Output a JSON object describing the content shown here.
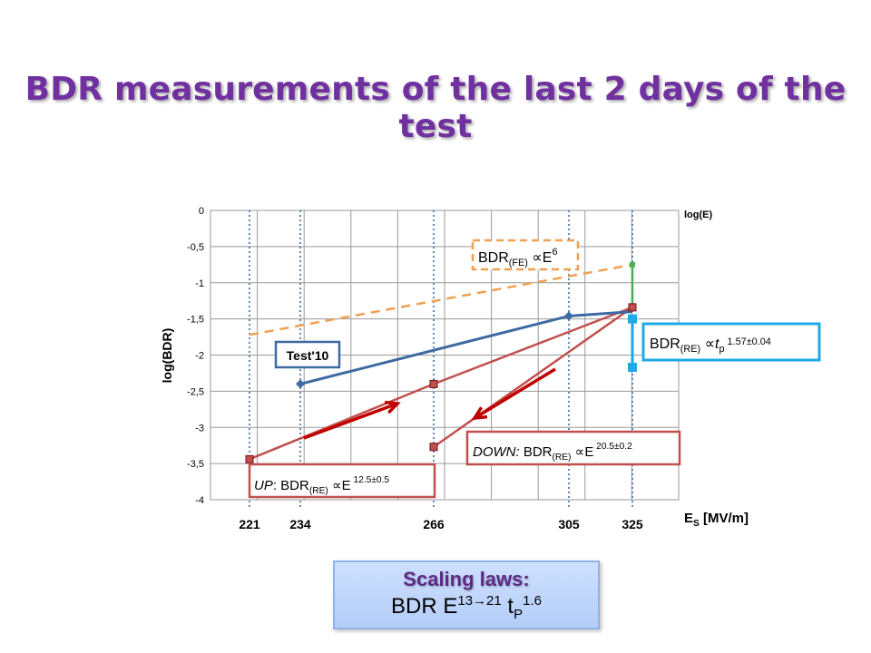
{
  "slide": {
    "title": "BDR measurements of the last 2 days of the test"
  },
  "colors": {
    "title": "#7030a0",
    "test10": "#3d6aa3",
    "re": "#c0504d",
    "fe": "#f0a050",
    "blue_box": "#1eaae6",
    "vert_line": "#3d6aa3",
    "green": "#4caf50"
  },
  "chart_data": {
    "type": "line",
    "ylabel": "log(BDR)",
    "xlabel": "ES [MV/m]",
    "x_top_label": "log(E)",
    "ylim": [
      -4,
      0
    ],
    "yticks": [
      "0",
      "-0,5",
      "-1",
      "-1,5",
      "-2",
      "-2,5",
      "-3",
      "-3,5",
      "-4"
    ],
    "xticks": [
      "221",
      "234",
      "266",
      "305",
      "325"
    ],
    "grid": true,
    "series": [
      {
        "name": "Test'10",
        "points": [
          [
            234,
            -2.4
          ],
          [
            305,
            -1.46
          ],
          [
            325,
            -1.4
          ]
        ]
      },
      {
        "name": "BDR(FE) ∝E6",
        "points": [
          [
            221,
            -1.72
          ],
          [
            325,
            -0.75
          ]
        ]
      },
      {
        "name": "UP: BDR(RE) ∝E12.5±0.5",
        "points": [
          [
            221,
            -3.44
          ],
          [
            266,
            -2.4
          ],
          [
            325,
            -1.34
          ]
        ]
      },
      {
        "name": "DOWN: BDR(RE) ∝E20.5±0.2",
        "points": [
          [
            266,
            -3.27
          ],
          [
            325,
            -1.34
          ]
        ]
      },
      {
        "name": "BDR(RE) ∝tp 1.57±0.04",
        "points": [
          [
            325,
            -1.5
          ],
          [
            325,
            -2.17
          ]
        ]
      }
    ],
    "annotations": {
      "fe": {
        "base": "BDR",
        "sub": "(FE)",
        "mid": " ∝E",
        "sup": "6"
      },
      "test10": "Test'10",
      "tp": {
        "base": "BDR",
        "sub": "(RE)",
        "mid": " ∝",
        "var": "t",
        "varsub": "p",
        "sup": " 1.57±0.04"
      },
      "up": {
        "italic": "UP",
        "rest": ": BDR",
        "sub": "(RE)",
        "mid": " ∝E",
        "sup": " 12.5±0.5"
      },
      "down": {
        "italic": "DOWN:",
        "rest": " BDR",
        "sub": "(RE)",
        "mid": " ∝E",
        "sup": " 20.5±0.2"
      }
    }
  },
  "scaling": {
    "title": "Scaling laws:",
    "law_prefix": "BDR  E",
    "law_sup": "13→21",
    "law_mid": " t",
    "law_sub": "P",
    "law_sup2": "1.6"
  }
}
